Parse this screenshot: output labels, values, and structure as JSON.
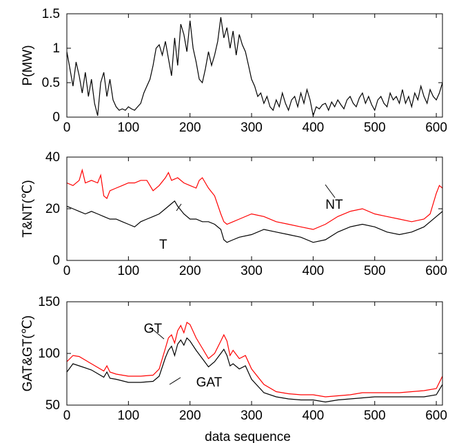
{
  "chart_data": [
    {
      "type": "line",
      "ylabel": "P(MW)",
      "xlabel": "",
      "xlim": [
        0,
        610
      ],
      "ylim": [
        0,
        1.5
      ],
      "xticks": [
        "0",
        "100",
        "200",
        "300",
        "400",
        "500",
        "600"
      ],
      "yticks": [
        "0",
        "0.5",
        "1",
        "1.5"
      ],
      "grid": false,
      "series": [
        {
          "color": "#000000",
          "x": [
            0,
            5,
            10,
            15,
            20,
            25,
            30,
            35,
            40,
            45,
            50,
            55,
            60,
            65,
            70,
            75,
            80,
            85,
            90,
            95,
            100,
            105,
            110,
            115,
            120,
            125,
            130,
            135,
            140,
            145,
            150,
            155,
            160,
            165,
            170,
            175,
            180,
            185,
            190,
            195,
            200,
            205,
            210,
            215,
            220,
            225,
            230,
            235,
            240,
            245,
            250,
            255,
            260,
            265,
            270,
            275,
            280,
            285,
            290,
            295,
            300,
            305,
            310,
            315,
            320,
            325,
            330,
            335,
            340,
            345,
            350,
            355,
            360,
            365,
            370,
            375,
            380,
            385,
            390,
            395,
            400,
            405,
            410,
            415,
            420,
            425,
            430,
            435,
            440,
            445,
            450,
            455,
            460,
            465,
            470,
            475,
            480,
            485,
            490,
            495,
            500,
            505,
            510,
            515,
            520,
            525,
            530,
            535,
            540,
            545,
            550,
            555,
            560,
            565,
            570,
            575,
            580,
            585,
            590,
            595,
            600,
            605,
            610
          ],
          "y": [
            0.95,
            0.7,
            0.45,
            0.8,
            0.6,
            0.35,
            0.65,
            0.3,
            0.55,
            0.2,
            0.02,
            0.5,
            0.65,
            0.3,
            0.55,
            0.25,
            0.15,
            0.1,
            0.12,
            0.1,
            0.15,
            0.12,
            0.1,
            0.15,
            0.2,
            0.35,
            0.45,
            0.55,
            0.75,
            1.0,
            1.05,
            0.9,
            1.1,
            0.85,
            0.6,
            1.15,
            0.75,
            1.35,
            1.2,
            0.95,
            1.4,
            1.0,
            0.8,
            0.55,
            0.5,
            0.7,
            0.95,
            0.75,
            0.9,
            1.1,
            1.45,
            1.15,
            1.3,
            1.0,
            1.25,
            0.9,
            1.2,
            1.05,
            0.95,
            0.75,
            0.55,
            0.45,
            0.3,
            0.35,
            0.2,
            0.3,
            0.15,
            0.1,
            0.25,
            0.15,
            0.35,
            0.2,
            0.1,
            0.25,
            0.3,
            0.15,
            0.35,
            0.2,
            0.4,
            0.25,
            0.02,
            0.15,
            0.12,
            0.18,
            0.2,
            0.1,
            0.22,
            0.15,
            0.25,
            0.18,
            0.12,
            0.25,
            0.3,
            0.2,
            0.15,
            0.28,
            0.35,
            0.2,
            0.3,
            0.18,
            0.1,
            0.25,
            0.3,
            0.2,
            0.15,
            0.35,
            0.25,
            0.3,
            0.2,
            0.4,
            0.2,
            0.3,
            0.15,
            0.35,
            0.25,
            0.45,
            0.3,
            0.2,
            0.4,
            0.3,
            0.25,
            0.35,
            0.5
          ]
        }
      ],
      "annotations": []
    },
    {
      "type": "line",
      "ylabel": "T&NT(℃)",
      "xlabel": "",
      "xlim": [
        0,
        610
      ],
      "ylim": [
        0,
        40
      ],
      "xticks": [
        "0",
        "100",
        "200",
        "300",
        "400",
        "500",
        "600"
      ],
      "yticks": [
        "0",
        "20",
        "40"
      ],
      "grid": false,
      "series": [
        {
          "name": "NT",
          "color": "#ff0000",
          "x": [
            0,
            10,
            20,
            25,
            30,
            40,
            50,
            55,
            60,
            65,
            70,
            80,
            90,
            100,
            110,
            120,
            130,
            140,
            150,
            160,
            165,
            170,
            180,
            190,
            200,
            210,
            215,
            220,
            225,
            230,
            240,
            250,
            255,
            260,
            270,
            280,
            300,
            320,
            340,
            360,
            380,
            400,
            420,
            440,
            460,
            480,
            500,
            520,
            540,
            560,
            580,
            590,
            600,
            605,
            610
          ],
          "y": [
            30,
            29,
            31,
            35,
            30,
            31,
            30,
            33,
            25,
            24,
            27,
            28,
            29,
            30,
            30,
            31,
            31,
            27,
            29,
            32,
            34,
            31,
            32,
            30,
            29,
            28,
            31,
            32,
            30,
            28,
            25,
            18,
            15,
            14,
            15,
            16,
            18,
            17,
            15,
            14,
            13,
            12,
            14,
            17,
            19,
            20,
            18,
            17,
            16,
            15,
            16,
            18,
            26,
            29,
            28
          ]
        },
        {
          "name": "T",
          "color": "#000000",
          "x": [
            0,
            10,
            20,
            30,
            40,
            50,
            60,
            70,
            80,
            90,
            100,
            110,
            120,
            130,
            140,
            150,
            160,
            170,
            175,
            180,
            190,
            200,
            210,
            220,
            230,
            240,
            250,
            255,
            260,
            270,
            280,
            300,
            320,
            340,
            360,
            380,
            400,
            420,
            440,
            460,
            480,
            500,
            520,
            540,
            560,
            580,
            600,
            610
          ],
          "y": [
            21,
            20,
            19,
            18,
            19,
            18,
            17,
            16,
            16,
            15,
            14,
            13,
            15,
            16,
            17,
            18,
            20,
            22,
            23,
            21,
            18,
            16,
            16,
            15,
            15,
            14,
            12,
            8,
            7,
            8,
            9,
            10,
            12,
            11,
            10,
            9,
            7,
            8,
            11,
            13,
            14,
            13,
            11,
            10,
            11,
            13,
            17,
            19
          ]
        }
      ],
      "annotations": [
        {
          "text": "NT",
          "x": 420,
          "y": 20
        },
        {
          "text": "T",
          "x": 150,
          "y": 4.5
        }
      ]
    },
    {
      "type": "line",
      "ylabel": "GAT&GT(℃)",
      "xlabel": "data sequence",
      "xlim": [
        0,
        610
      ],
      "ylim": [
        50,
        150
      ],
      "xticks": [
        "0",
        "100",
        "200",
        "300",
        "400",
        "500",
        "600"
      ],
      "yticks": [
        "50",
        "100",
        "150"
      ],
      "grid": false,
      "series": [
        {
          "name": "GT",
          "color": "#ff0000",
          "x": [
            0,
            10,
            20,
            40,
            60,
            65,
            70,
            80,
            100,
            120,
            140,
            150,
            160,
            165,
            170,
            175,
            180,
            185,
            190,
            195,
            200,
            210,
            220,
            230,
            240,
            250,
            255,
            260,
            265,
            270,
            280,
            290,
            300,
            320,
            340,
            360,
            380,
            400,
            420,
            440,
            460,
            480,
            500,
            520,
            540,
            560,
            580,
            600,
            610
          ],
          "y": [
            92,
            98,
            97,
            90,
            83,
            88,
            82,
            80,
            78,
            78,
            79,
            85,
            105,
            115,
            118,
            110,
            122,
            127,
            120,
            130,
            128,
            115,
            105,
            95,
            100,
            112,
            118,
            112,
            98,
            103,
            95,
            98,
            85,
            70,
            63,
            61,
            60,
            60,
            58,
            59,
            60,
            62,
            62,
            62,
            62,
            63,
            64,
            66,
            78
          ]
        },
        {
          "name": "GAT",
          "color": "#000000",
          "x": [
            0,
            10,
            20,
            40,
            60,
            65,
            70,
            80,
            100,
            120,
            140,
            150,
            160,
            165,
            170,
            175,
            180,
            185,
            190,
            195,
            200,
            210,
            220,
            230,
            240,
            250,
            255,
            260,
            265,
            270,
            280,
            290,
            300,
            320,
            340,
            360,
            380,
            400,
            420,
            440,
            460,
            480,
            500,
            520,
            540,
            560,
            580,
            600,
            610
          ],
          "y": [
            82,
            90,
            88,
            84,
            77,
            82,
            76,
            75,
            72,
            72,
            73,
            78,
            96,
            103,
            107,
            98,
            109,
            113,
            108,
            115,
            112,
            103,
            95,
            87,
            92,
            100,
            104,
            98,
            88,
            90,
            85,
            88,
            75,
            62,
            58,
            56,
            55,
            55,
            53,
            55,
            56,
            57,
            58,
            58,
            58,
            58,
            58,
            60,
            70
          ]
        }
      ],
      "annotations": [
        {
          "text": "GT",
          "x": 125,
          "y": 120
        },
        {
          "text": "GAT",
          "x": 210,
          "y": 68
        }
      ]
    }
  ]
}
